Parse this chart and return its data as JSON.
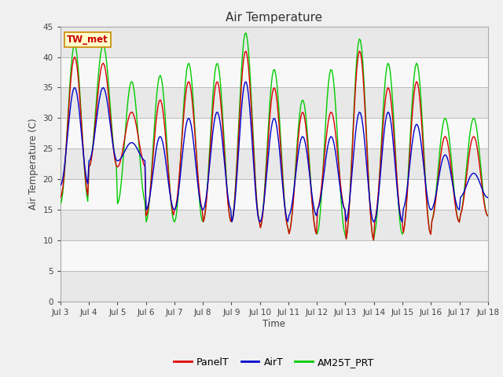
{
  "title": "Air Temperature",
  "xlabel": "Time",
  "ylabel": "Air Temperature (C)",
  "ylim": [
    0,
    45
  ],
  "yticks": [
    0,
    5,
    10,
    15,
    20,
    25,
    30,
    35,
    40,
    45
  ],
  "x_labels": [
    "Jul 3",
    "Jul 4",
    "Jul 5",
    "Jul 6",
    "Jul 7",
    "Jul 8",
    "Jul 9",
    "Jul 10",
    "Jul 11",
    "Jul 12",
    "Jul 13",
    "Jul 14",
    "Jul 15",
    "Jul 16",
    "Jul 17",
    "Jul 18"
  ],
  "station_label": "TW_met",
  "station_label_color": "#cc0000",
  "station_box_facecolor": "#ffffcc",
  "station_box_edgecolor": "#cc8800",
  "legend_entries": [
    "PanelT",
    "AirT",
    "AM25T_PRT"
  ],
  "line_colors": [
    "#dd0000",
    "#0000cc",
    "#00cc00"
  ],
  "background_color": "#f0f0f0",
  "band_colors": [
    "#e8e8e8",
    "#f8f8f8"
  ],
  "grid_color": "#bbbbbb",
  "n_days": 15,
  "day_peaks_panel": [
    40,
    39,
    31,
    33,
    36,
    36,
    41,
    35,
    31,
    31,
    41,
    35,
    36,
    27,
    27
  ],
  "day_mins_panel": [
    17,
    22,
    22,
    14,
    15,
    13,
    13,
    12,
    11,
    15,
    10,
    13,
    11,
    13,
    14
  ],
  "day_peaks_air": [
    35,
    35,
    26,
    27,
    30,
    31,
    36,
    30,
    27,
    27,
    31,
    31,
    29,
    24,
    21
  ],
  "day_mins_air": [
    19,
    23,
    23,
    15,
    15,
    15,
    13,
    13,
    14,
    15,
    13,
    13,
    15,
    15,
    17
  ],
  "day_peaks_green": [
    42,
    42,
    36,
    37,
    39,
    39,
    44,
    38,
    33,
    38,
    43,
    39,
    39,
    30,
    30
  ],
  "day_mins_green": [
    16,
    22,
    16,
    13,
    13,
    13,
    13,
    12,
    11,
    11,
    10,
    11,
    11,
    13,
    14
  ]
}
